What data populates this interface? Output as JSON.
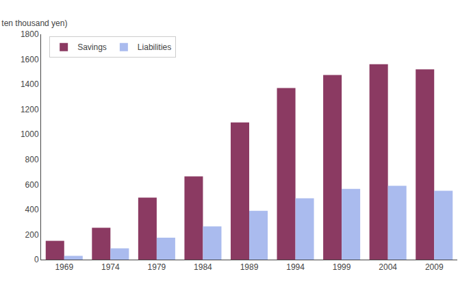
{
  "chart_data": {
    "type": "bar",
    "ylabel": "(In ten thousand yen)",
    "categories": [
      "1969",
      "1974",
      "1979",
      "1984",
      "1989",
      "1994",
      "1999",
      "2004",
      "2009"
    ],
    "series": [
      {
        "name": "Savings",
        "color": "#8B3A62",
        "values": [
          150,
          255,
          495,
          665,
          1095,
          1370,
          1475,
          1560,
          1520
        ]
      },
      {
        "name": "Liabilities",
        "color": "#AABBEE",
        "values": [
          30,
          90,
          175,
          265,
          390,
          490,
          565,
          590,
          550
        ]
      }
    ],
    "ylim": [
      0,
      1800
    ],
    "yticks": [
      0,
      200,
      400,
      600,
      800,
      1000,
      1200,
      1400,
      1600,
      1800
    ],
    "grid": false,
    "legend": "upper left"
  }
}
